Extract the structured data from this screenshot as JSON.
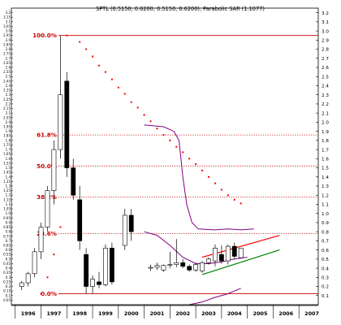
{
  "chart_data": {
    "type": "candlestick",
    "title": "SPTL (0.5150, 0.6200, 0.5150, 0.6200), Parabolic SAR (1.1077)",
    "xlabel": "",
    "ylabel": "",
    "ylim": [
      0.0,
      3.25
    ],
    "grid": false,
    "legend": "none",
    "x_ticks": [
      "1996",
      "1997",
      "1998",
      "1999",
      "2000",
      "2001",
      "2002",
      "2003",
      "2004",
      "2005",
      "2006",
      "2007"
    ],
    "y_ticks_right": [
      "0.1",
      "0.2",
      "0.3",
      "0.4",
      "0.5",
      "0.6",
      "0.7",
      "0.8",
      "0.9",
      "1.0",
      "1.1",
      "1.2",
      "1.3",
      "1.4",
      "1.5",
      "1.6",
      "1.7",
      "1.8",
      "1.9",
      "2.0",
      "2.1",
      "2.2",
      "2.3",
      "2.4",
      "2.5",
      "2.6",
      "2.7",
      "2.8",
      "2.9",
      "3.0",
      "3.1",
      "3.2"
    ],
    "y_ticks_left": [
      "0.05",
      "0.1",
      "0.15",
      "0.2",
      "0.25",
      "0.3",
      "0.35",
      "0.4",
      "0.45",
      "0.5",
      "0.55",
      "0.6",
      "0.65",
      "0.7",
      "0.75",
      "0.8",
      "0.85",
      "0.9",
      "0.95",
      "1.0",
      "1.05",
      "1.1",
      "1.15",
      "1.2",
      "1.25",
      "1.3",
      "1.35",
      "1.4",
      "1.45",
      "1.5",
      "1.55",
      "1.6",
      "1.65",
      "1.7",
      "1.75",
      "1.8",
      "1.85",
      "1.9",
      "1.95",
      "2.0",
      "2.05",
      "2.1",
      "2.15",
      "2.2",
      "2.25",
      "2.3",
      "2.35",
      "2.4",
      "2.45",
      "2.5",
      "2.55",
      "2.6",
      "2.65",
      "2.7",
      "2.75",
      "2.8",
      "2.85",
      "2.9",
      "2.95",
      "3.0",
      "3.05",
      "3.1",
      "3.15",
      "3.2"
    ],
    "fib_levels": [
      {
        "label": "100.0%",
        "value": 2.95,
        "style": "solid"
      },
      {
        "label": "61.8%",
        "value": 1.86,
        "style": "dotted"
      },
      {
        "label": "50.0%",
        "value": 1.52,
        "style": "dotted"
      },
      {
        "label": "38.2%",
        "value": 1.18,
        "style": "dotted"
      },
      {
        "label": "23.6%",
        "value": 0.78,
        "style": "dotted"
      },
      {
        "label": "0.0%",
        "value": 0.12,
        "style": "solid"
      }
    ],
    "candles": [
      {
        "t": 1996.0,
        "o": 0.2,
        "h": 0.26,
        "l": 0.16,
        "c": 0.24
      },
      {
        "t": 1996.25,
        "o": 0.24,
        "h": 0.36,
        "l": 0.2,
        "c": 0.34
      },
      {
        "t": 1996.5,
        "o": 0.34,
        "h": 0.62,
        "l": 0.3,
        "c": 0.58
      },
      {
        "t": 1996.75,
        "o": 0.58,
        "h": 0.9,
        "l": 0.5,
        "c": 0.85
      },
      {
        "t": 1997.0,
        "o": 0.85,
        "h": 1.3,
        "l": 0.8,
        "c": 1.25
      },
      {
        "t": 1997.25,
        "o": 1.25,
        "h": 1.8,
        "l": 1.1,
        "c": 1.7
      },
      {
        "t": 1997.5,
        "o": 1.7,
        "h": 2.95,
        "l": 1.6,
        "c": 2.3
      },
      {
        "t": 1997.75,
        "o": 2.45,
        "h": 2.55,
        "l": 1.4,
        "c": 1.5
      },
      {
        "t": 1998.0,
        "o": 1.5,
        "h": 1.6,
        "l": 1.15,
        "c": 1.2
      },
      {
        "t": 1998.25,
        "o": 1.15,
        "h": 1.3,
        "l": 0.6,
        "c": 0.7
      },
      {
        "t": 1998.5,
        "o": 0.55,
        "h": 0.62,
        "l": 0.12,
        "c": 0.2
      },
      {
        "t": 1998.75,
        "o": 0.2,
        "h": 0.32,
        "l": 0.12,
        "c": 0.28
      },
      {
        "t": 1999.0,
        "o": 0.25,
        "h": 0.36,
        "l": 0.18,
        "c": 0.22
      },
      {
        "t": 1999.25,
        "o": 0.22,
        "h": 0.66,
        "l": 0.2,
        "c": 0.62
      },
      {
        "t": 1999.5,
        "o": 0.62,
        "h": 0.68,
        "l": 0.22,
        "c": 0.25
      },
      {
        "t": 2000.0,
        "o": 0.65,
        "h": 1.05,
        "l": 0.6,
        "c": 0.98
      },
      {
        "t": 2000.25,
        "o": 0.98,
        "h": 1.05,
        "l": 0.7,
        "c": 0.8
      },
      {
        "t": 2001.0,
        "o": 0.4,
        "h": 0.44,
        "l": 0.37,
        "c": 0.41
      },
      {
        "t": 2001.25,
        "o": 0.41,
        "h": 0.46,
        "l": 0.38,
        "c": 0.43
      },
      {
        "t": 2001.5,
        "o": 0.38,
        "h": 0.44,
        "l": 0.36,
        "c": 0.43
      },
      {
        "t": 2001.75,
        "o": 0.43,
        "h": 0.58,
        "l": 0.4,
        "c": 0.44
      },
      {
        "t": 2002.0,
        "o": 0.44,
        "h": 0.72,
        "l": 0.41,
        "c": 0.46
      },
      {
        "t": 2002.25,
        "o": 0.46,
        "h": 0.5,
        "l": 0.4,
        "c": 0.42
      },
      {
        "t": 2002.5,
        "o": 0.42,
        "h": 0.44,
        "l": 0.36,
        "c": 0.38
      },
      {
        "t": 2002.75,
        "o": 0.38,
        "h": 0.46,
        "l": 0.36,
        "c": 0.44
      },
      {
        "t": 2003.0,
        "o": 0.37,
        "h": 0.48,
        "l": 0.35,
        "c": 0.46
      },
      {
        "t": 2003.25,
        "o": 0.46,
        "h": 0.52,
        "l": 0.44,
        "c": 0.5
      },
      {
        "t": 2003.5,
        "o": 0.48,
        "h": 0.66,
        "l": 0.42,
        "c": 0.62
      },
      {
        "t": 2003.75,
        "o": 0.55,
        "h": 0.65,
        "l": 0.45,
        "c": 0.48
      },
      {
        "t": 2004.0,
        "o": 0.48,
        "h": 0.66,
        "l": 0.44,
        "c": 0.64
      },
      {
        "t": 2004.25,
        "o": 0.64,
        "h": 0.68,
        "l": 0.5,
        "c": 0.53
      },
      {
        "t": 2004.5,
        "o": 0.515,
        "h": 0.62,
        "l": 0.515,
        "c": 0.62
      }
    ],
    "sar_points": [
      {
        "t": 1996.75,
        "v": 0.12
      },
      {
        "t": 1997.0,
        "v": 0.3
      },
      {
        "t": 1997.25,
        "v": 0.55
      },
      {
        "t": 1997.5,
        "v": 0.85
      },
      {
        "t": 1997.75,
        "v": 2.95
      },
      {
        "t": 1998.25,
        "v": 2.88
      },
      {
        "t": 1998.5,
        "v": 2.8
      },
      {
        "t": 1998.75,
        "v": 2.72
      },
      {
        "t": 1999.0,
        "v": 2.62
      },
      {
        "t": 1999.25,
        "v": 2.55
      },
      {
        "t": 1999.5,
        "v": 2.47
      },
      {
        "t": 1999.75,
        "v": 2.38
      },
      {
        "t": 2000.0,
        "v": 2.31
      },
      {
        "t": 2000.25,
        "v": 2.22
      },
      {
        "t": 2000.5,
        "v": 2.16
      },
      {
        "t": 2000.75,
        "v": 2.08
      },
      {
        "t": 2001.0,
        "v": 2.01
      },
      {
        "t": 2001.25,
        "v": 1.93
      },
      {
        "t": 2001.5,
        "v": 1.86
      },
      {
        "t": 2001.75,
        "v": 1.8
      },
      {
        "t": 2002.0,
        "v": 1.73
      },
      {
        "t": 2002.25,
        "v": 1.67
      },
      {
        "t": 2002.5,
        "v": 1.6
      },
      {
        "t": 2002.75,
        "v": 1.54
      },
      {
        "t": 2003.0,
        "v": 1.47
      },
      {
        "t": 2003.25,
        "v": 1.4
      },
      {
        "t": 2003.5,
        "v": 1.33
      },
      {
        "t": 2003.75,
        "v": 1.26
      },
      {
        "t": 2004.0,
        "v": 1.2
      },
      {
        "t": 2004.25,
        "v": 1.15
      },
      {
        "t": 2004.5,
        "v": 1.11
      }
    ],
    "overlay_lines": [
      {
        "name": "",
        "color": "#800080",
        "points": [
          {
            "t": 2000.75,
            "v": 1.97
          },
          {
            "t": 2001.5,
            "v": 1.95
          },
          {
            "t": 2001.9,
            "v": 1.9
          },
          {
            "t": 2002.1,
            "v": 1.8
          },
          {
            "t": 2002.25,
            "v": 1.4
          },
          {
            "t": 2002.4,
            "v": 1.1
          },
          {
            "t": 2002.6,
            "v": 0.9
          },
          {
            "t": 2002.85,
            "v": 0.83
          },
          {
            "t": 2003.5,
            "v": 0.82
          },
          {
            "t": 2004.0,
            "v": 0.83
          },
          {
            "t": 2004.5,
            "v": 0.82
          },
          {
            "t": 2005.0,
            "v": 0.83
          }
        ]
      },
      {
        "name": "",
        "color": "#800080",
        "points": [
          {
            "t": 2000.75,
            "v": 0.8
          },
          {
            "t": 2001.25,
            "v": 0.76
          },
          {
            "t": 2001.75,
            "v": 0.65
          },
          {
            "t": 2002.25,
            "v": 0.52
          },
          {
            "t": 2002.75,
            "v": 0.45
          },
          {
            "t": 2003.25,
            "v": 0.45
          },
          {
            "t": 2003.75,
            "v": 0.47
          },
          {
            "t": 2004.25,
            "v": 0.5
          },
          {
            "t": 2004.75,
            "v": 0.52
          }
        ]
      },
      {
        "name": "",
        "color": "#800080",
        "points": [
          {
            "t": 2002.5,
            "v": 0.0
          },
          {
            "t": 2003.0,
            "v": 0.03
          },
          {
            "t": 2003.5,
            "v": 0.08
          },
          {
            "t": 2004.0,
            "v": 0.12
          },
          {
            "t": 2004.5,
            "v": 0.18
          }
        ]
      }
    ],
    "trendlines": [
      {
        "color": "#ff0000",
        "from": {
          "t": 2003.0,
          "v": 0.52
        },
        "to": {
          "t": 2006.0,
          "v": 0.76
        }
      },
      {
        "color": "#008000",
        "from": {
          "t": 2003.0,
          "v": 0.33
        },
        "to": {
          "t": 2006.0,
          "v": 0.6
        }
      }
    ],
    "colors": {
      "bull": "#ffffff",
      "bear": "#000000",
      "fib": "#cc0000",
      "sar": "#ff0000",
      "axis": "#000000"
    }
  }
}
